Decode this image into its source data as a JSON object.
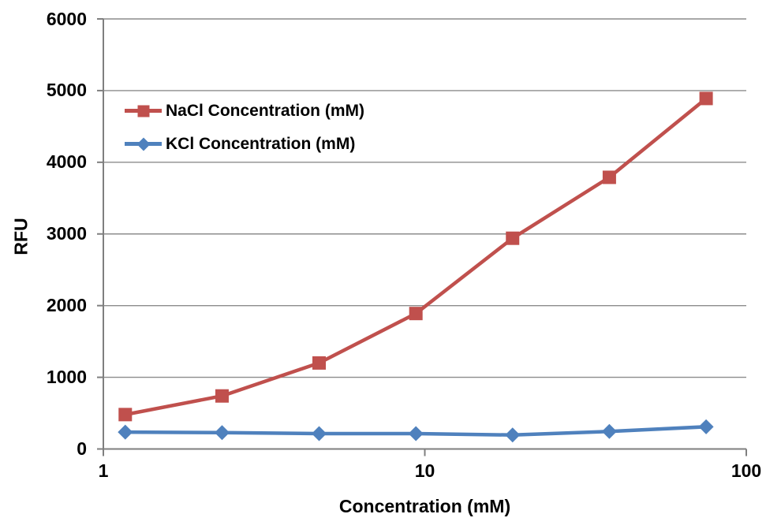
{
  "chart_data": {
    "type": "line",
    "title": "",
    "xlabel": "Concentration (mM)",
    "ylabel": "RFU",
    "x_scale": "log",
    "xlim": [
      1,
      100
    ],
    "ylim": [
      0,
      6000
    ],
    "x_tick_labels": [
      "1",
      "10",
      "100"
    ],
    "x_tick_values": [
      1,
      10,
      100
    ],
    "y_tick_labels": [
      "0",
      "1000",
      "2000",
      "3000",
      "4000",
      "5000",
      "6000"
    ],
    "y_tick_values": [
      0,
      1000,
      2000,
      3000,
      4000,
      5000,
      6000
    ],
    "grid": "horizontal-major",
    "legend_position": "upper-left-inside",
    "x": [
      1.17,
      2.34,
      4.69,
      9.38,
      18.75,
      37.5,
      75
    ],
    "series": [
      {
        "name": "NaCl Concentration (mM)",
        "color": "#C0504D",
        "marker": "square",
        "values": [
          480,
          740,
          1200,
          1890,
          2940,
          3790,
          4890
        ]
      },
      {
        "name": "KCl Concentration (mM)",
        "color": "#4F81BD",
        "marker": "diamond",
        "values": [
          235,
          228,
          215,
          215,
          195,
          245,
          310
        ]
      }
    ]
  },
  "colors": {
    "background": "#FFFFFF",
    "gridline": "#8C8C8C",
    "axis": "#7F7F7F",
    "text": "#000000",
    "nacl_series": "#C0504D",
    "kcl_series": "#4F81BD"
  }
}
